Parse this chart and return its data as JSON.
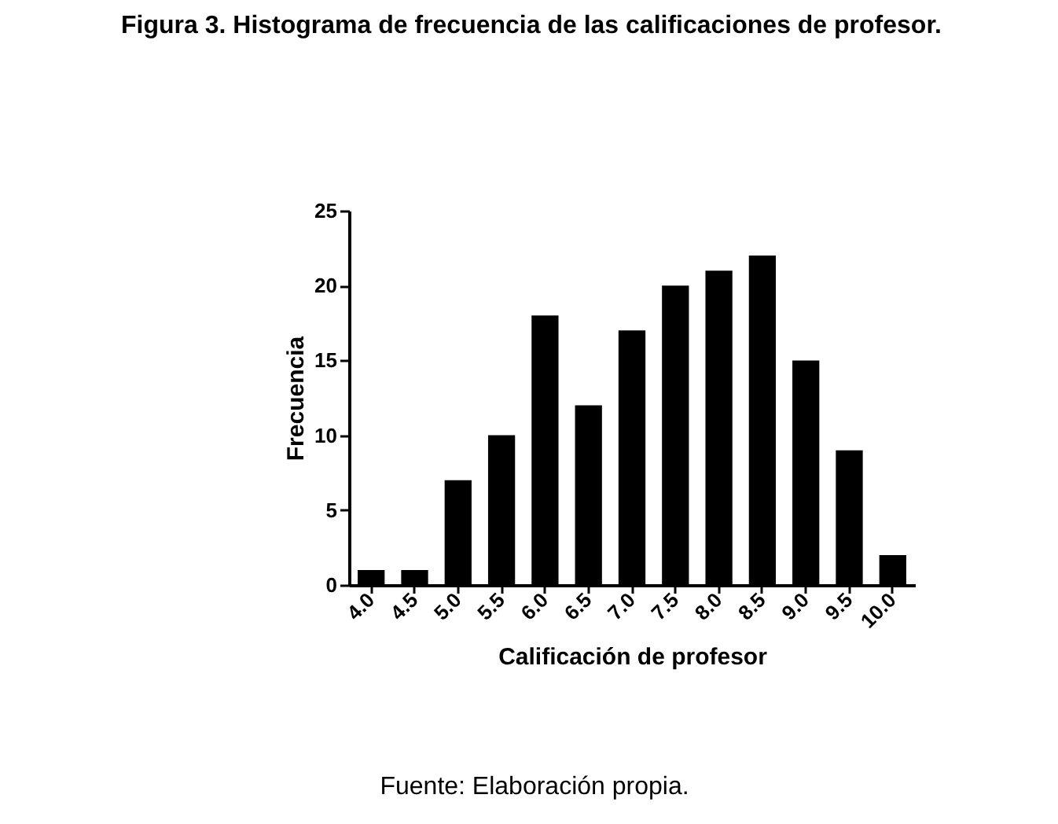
{
  "chart_data": {
    "type": "bar",
    "title": "Figura 3. Histograma de frecuencia de las calificaciones de profesor.",
    "xlabel": "Calificación de profesor",
    "ylabel": "Frecuencia",
    "categories": [
      "4.0",
      "4.5",
      "5.0",
      "5.5",
      "6.0",
      "6.5",
      "7.0",
      "7.5",
      "8.0",
      "8.5",
      "9.0",
      "9.5",
      "10.0"
    ],
    "values": [
      1,
      1,
      7,
      10,
      18,
      12,
      17,
      20,
      21,
      22,
      15,
      9,
      2
    ],
    "color": "#000000",
    "ylim": [
      0,
      25
    ],
    "yticks": [
      0,
      5,
      10,
      15,
      20,
      25
    ],
    "grid": false,
    "annotations": [
      "Fuente: Elaboración propia."
    ]
  }
}
